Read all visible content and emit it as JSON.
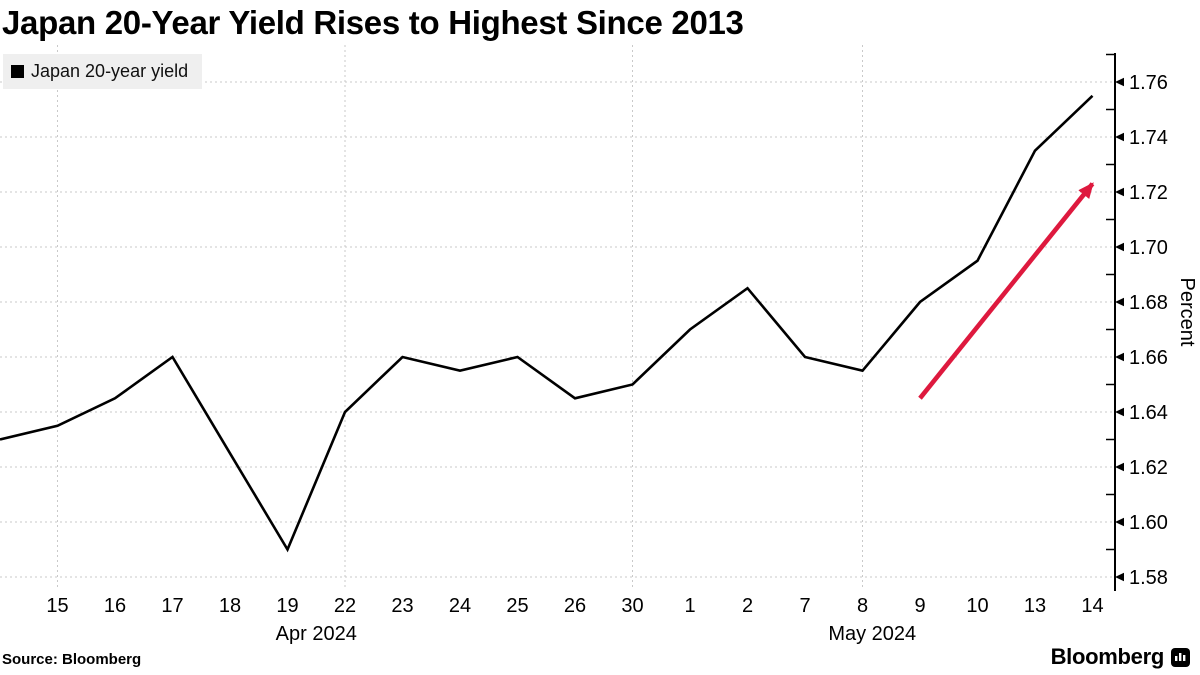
{
  "title": "Japan 20-Year Yield Rises to Highest Since 2013",
  "legend": {
    "swatch_color": "#000000",
    "label": "Japan 20-year yield"
  },
  "y_axis": {
    "label": "Percent",
    "major_ticks": [
      "1.76",
      "1.74",
      "1.72",
      "1.70",
      "1.68",
      "1.66",
      "1.64",
      "1.62",
      "1.60",
      "1.58"
    ],
    "minor_tick_values": [
      1.77,
      1.75,
      1.73,
      1.71,
      1.69,
      1.67,
      1.65,
      1.63,
      1.61,
      1.59
    ]
  },
  "x_axis": {
    "month_labels": [
      "Apr 2024",
      "May 2024"
    ]
  },
  "footer": {
    "source": "Source: Bloomberg",
    "brand_wordmark": "Bloomberg"
  },
  "colors": {
    "series": "#000000",
    "gridline": "#c9c9c9",
    "axis": "#000000",
    "annotation_red": "#de193e",
    "legend_bg": "#efefef"
  },
  "chart_data": {
    "type": "line",
    "title": "Japan 20-Year Yield Rises to Highest Since 2013",
    "ylabel": "Percent",
    "ylim": [
      1.58,
      1.76
    ],
    "grid": "dashed",
    "legend_position": "top-left",
    "categories": [
      "15",
      "16",
      "17",
      "18",
      "19",
      "22",
      "23",
      "24",
      "25",
      "26",
      "30",
      "1",
      "2",
      "7",
      "8",
      "9",
      "10",
      "13",
      "14"
    ],
    "month_of_categories": [
      "Apr 2024 (15-30)",
      "May 2024 (1-14)"
    ],
    "edge_start_value": 1.63,
    "series": [
      {
        "name": "Japan 20-year yield",
        "color": "#000000",
        "values": [
          1.635,
          1.645,
          1.66,
          1.625,
          1.59,
          1.64,
          1.66,
          1.655,
          1.66,
          1.645,
          1.65,
          1.67,
          1.685,
          1.66,
          1.655,
          1.68,
          1.695,
          1.735,
          1.755
        ]
      }
    ],
    "vertical_gridline_categories": [
      "15",
      "22",
      "30",
      "8"
    ],
    "annotation": {
      "type": "arrow",
      "color": "#de193e",
      "from": {
        "category": "9",
        "value": 1.645
      },
      "to": {
        "category": "14",
        "value": 1.723
      }
    }
  }
}
